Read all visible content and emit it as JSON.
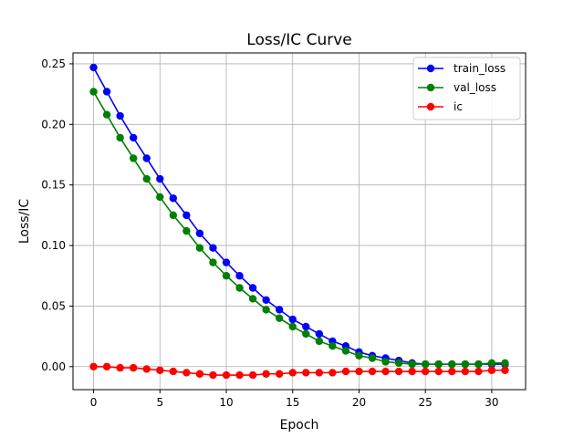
{
  "chart_data": {
    "type": "line",
    "title": "Loss/IC Curve",
    "xlabel": "Epoch",
    "ylabel": "Loss/IC",
    "xlim": [
      -1.55,
      32.55
    ],
    "ylim": [
      -0.019,
      0.259
    ],
    "xticks": [
      0,
      5,
      10,
      15,
      20,
      25,
      30
    ],
    "yticks": [
      0.0,
      0.05,
      0.1,
      0.15,
      0.2,
      0.25
    ],
    "ytick_labels": [
      "0.00",
      "0.05",
      "0.10",
      "0.15",
      "0.20",
      "0.25"
    ],
    "grid": true,
    "legend_position": "top-right",
    "x": [
      0,
      1,
      2,
      3,
      4,
      5,
      6,
      7,
      8,
      9,
      10,
      11,
      12,
      13,
      14,
      15,
      16,
      17,
      18,
      19,
      20,
      21,
      22,
      23,
      24,
      25,
      26,
      27,
      28,
      29,
      30,
      31
    ],
    "series": [
      {
        "name": "train_loss",
        "color": "#0000ff",
        "values": [
          0.247,
          0.227,
          0.207,
          0.189,
          0.172,
          0.155,
          0.139,
          0.125,
          0.11,
          0.098,
          0.086,
          0.075,
          0.065,
          0.055,
          0.047,
          0.039,
          0.033,
          0.027,
          0.021,
          0.017,
          0.012,
          0.009,
          0.007,
          0.005,
          0.003,
          0.002,
          0.002,
          0.002,
          0.002,
          0.002,
          0.002,
          0.002
        ]
      },
      {
        "name": "val_loss",
        "color": "#008000",
        "values": [
          0.227,
          0.208,
          0.189,
          0.172,
          0.155,
          0.14,
          0.125,
          0.112,
          0.098,
          0.086,
          0.075,
          0.065,
          0.056,
          0.047,
          0.04,
          0.033,
          0.027,
          0.021,
          0.017,
          0.013,
          0.009,
          0.007,
          0.004,
          0.003,
          0.002,
          0.002,
          0.002,
          0.002,
          0.002,
          0.002,
          0.003,
          0.003
        ]
      },
      {
        "name": "ic",
        "color": "#ff0000",
        "values": [
          0.0,
          0.0,
          -0.001,
          -0.001,
          -0.002,
          -0.003,
          -0.004,
          -0.005,
          -0.006,
          -0.007,
          -0.007,
          -0.007,
          -0.007,
          -0.006,
          -0.006,
          -0.005,
          -0.005,
          -0.005,
          -0.005,
          -0.004,
          -0.004,
          -0.004,
          -0.004,
          -0.004,
          -0.004,
          -0.004,
          -0.004,
          -0.004,
          -0.004,
          -0.004,
          -0.003,
          -0.003
        ]
      }
    ]
  }
}
